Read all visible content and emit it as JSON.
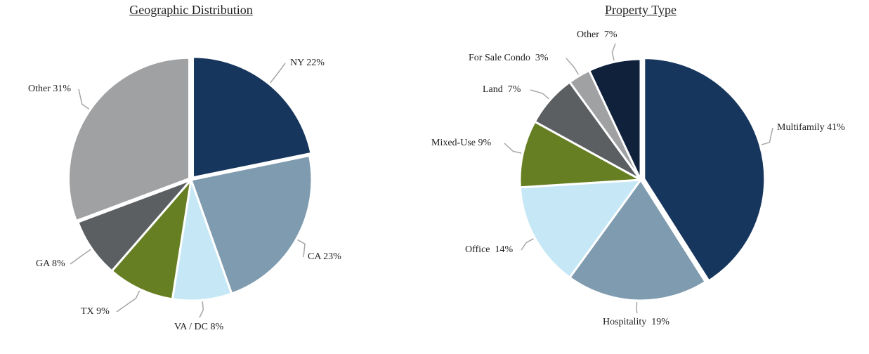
{
  "chart_data": [
    {
      "type": "pie",
      "title": "Geographic Distribution",
      "slices": [
        {
          "label": "NY 22%",
          "name": "NY",
          "value": 22,
          "color": "#17365d"
        },
        {
          "label": "CA 23%",
          "name": "CA",
          "value": 23,
          "color": "#7f9bb0"
        },
        {
          "label": "VA / DC 8%",
          "name": "VA / DC",
          "value": 8,
          "color": "#c6e8f6"
        },
        {
          "label": "TX 9%",
          "name": "TX",
          "value": 9,
          "color": "#667f22"
        },
        {
          "label": "GA 8%",
          "name": "GA",
          "value": 8,
          "color": "#5b5f61"
        },
        {
          "label": "Other 31%",
          "name": "Other",
          "value": 31,
          "color": "#a0a1a3"
        }
      ]
    },
    {
      "type": "pie",
      "title": "Property Type",
      "slices": [
        {
          "label": "Multifamily 41%",
          "name": "Multifamily",
          "value": 41,
          "color": "#17365d"
        },
        {
          "label": "Hospitality  19%",
          "name": "Hospitality",
          "value": 19,
          "color": "#7f9bb0"
        },
        {
          "label": "Office  14%",
          "name": "Office",
          "value": 14,
          "color": "#c6e8f6"
        },
        {
          "label": "Mixed-Use 9%",
          "name": "Mixed-Use",
          "value": 9,
          "color": "#667f22"
        },
        {
          "label": "Land  7%",
          "name": "Land",
          "value": 7,
          "color": "#5b5f61"
        },
        {
          "label": "For Sale Condo  3%",
          "name": "For Sale Condo",
          "value": 3,
          "color": "#a0a1a3"
        },
        {
          "label": "Other  7%",
          "name": "Other",
          "value": 7,
          "color": "#0f213b"
        }
      ]
    }
  ]
}
